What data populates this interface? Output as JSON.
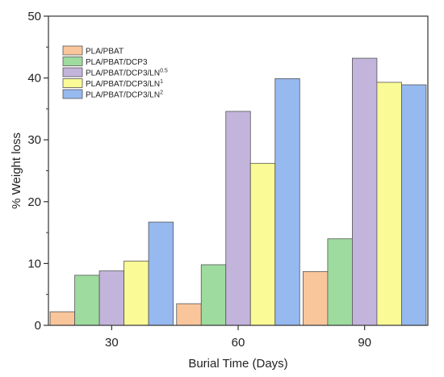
{
  "chart_data": {
    "type": "bar",
    "xlabel": "Burial Time (Days)",
    "ylabel": "% Weight loss",
    "categories": [
      "30",
      "60",
      "90"
    ],
    "ylim": [
      0,
      50
    ],
    "yticks": [
      "0",
      "10",
      "20",
      "30",
      "40",
      "50"
    ],
    "grid": false,
    "legend_position": "top-left",
    "series": [
      {
        "name": "PLA/PBAT",
        "name_sup": "",
        "color": "#f9c69c",
        "values": [
          2.2,
          3.5,
          8.7
        ]
      },
      {
        "name": "PLA/PBAT/DCP3",
        "name_sup": "",
        "color": "#9edb9e",
        "values": [
          8.1,
          9.8,
          14.0
        ]
      },
      {
        "name": "PLA/PBAT/DCP3/LN",
        "name_sup": "0.5",
        "color": "#c3b4dc",
        "values": [
          8.8,
          34.6,
          43.2
        ]
      },
      {
        "name": "PLA/PBAT/DCP3/LN",
        "name_sup": "1",
        "color": "#fafa96",
        "values": [
          10.4,
          26.2,
          39.3
        ]
      },
      {
        "name": "PLA/PBAT/DCP3/LN",
        "name_sup": "2",
        "color": "#96b9f0",
        "values": [
          16.7,
          39.9,
          38.9
        ]
      }
    ]
  }
}
